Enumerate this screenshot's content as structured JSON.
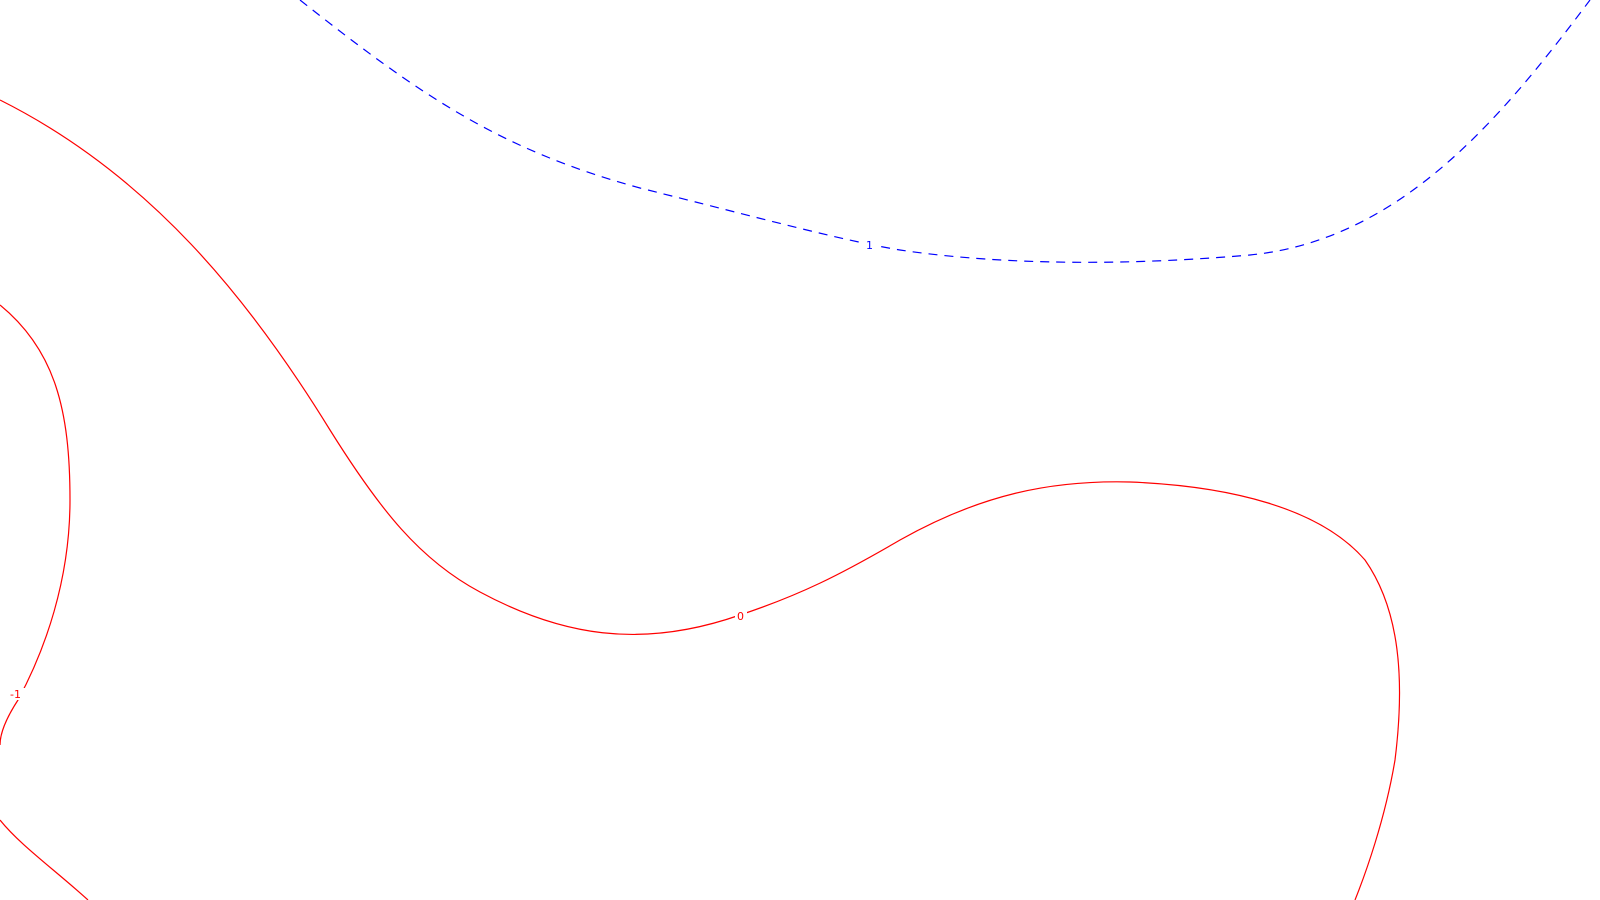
{
  "chart_data": {
    "type": "contour",
    "title": "",
    "xlabel": "",
    "ylabel": "",
    "grid": false,
    "contours": [
      {
        "level": "1",
        "color": "#0000ff",
        "line_style": "dashed",
        "label": "1"
      },
      {
        "level": "0",
        "color": "#ff0000",
        "line_style": "solid",
        "label": "0"
      },
      {
        "level": "-1",
        "color": "#ff0000",
        "line_style": "solid",
        "label": "-1"
      }
    ]
  }
}
